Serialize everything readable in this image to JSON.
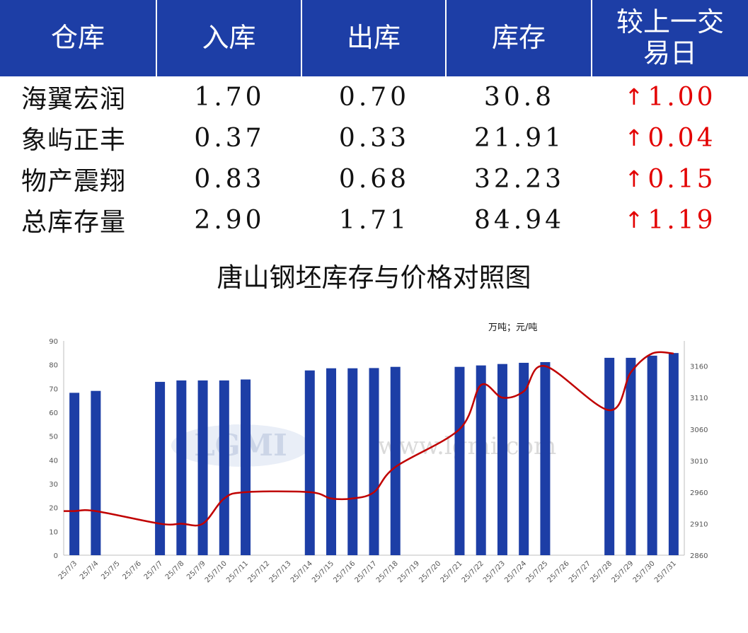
{
  "table": {
    "headers": [
      "仓库",
      "入库",
      "出库",
      "库存",
      "较上一交易日"
    ],
    "rows": [
      {
        "name": "海翼宏润",
        "in": "1.70",
        "out": "0.70",
        "stock": "30.8",
        "change": "1.00"
      },
      {
        "name": "象屿正丰",
        "in": "0.37",
        "out": "0.33",
        "stock": "21.91",
        "change": "0.04"
      },
      {
        "name": "物产震翔",
        "in": "0.83",
        "out": "0.68",
        "stock": "32.23",
        "change": "0.15"
      },
      {
        "name": "总库存量",
        "in": "2.90",
        "out": "1.71",
        "stock": "84.94",
        "change": "1.19"
      }
    ],
    "change_arrow": "↑",
    "change_color": "#e30000",
    "header_color": "#1d3ea6"
  },
  "watermark": {
    "logo": "LGMI",
    "url": "www.lgmi.com"
  },
  "chart_data": {
    "type": "bar+line",
    "title": "唐山钢坯库存与价格对照图",
    "unit_label": "万吨；元/吨",
    "categories": [
      "25/7/3",
      "25/7/4",
      "25/7/5",
      "25/7/6",
      "25/7/7",
      "25/7/8",
      "25/7/9",
      "25/7/10",
      "25/7/11",
      "25/7/12",
      "25/7/13",
      "25/7/14",
      "25/7/15",
      "25/7/16",
      "25/7/17",
      "25/7/18",
      "25/7/19",
      "25/7/20",
      "25/7/21",
      "25/7/22",
      "25/7/23",
      "25/7/24",
      "25/7/25",
      "25/7/26",
      "25/7/27",
      "25/7/28",
      "25/7/29",
      "25/7/30",
      "25/7/31"
    ],
    "series": [
      {
        "type": "bar",
        "axis": "left",
        "color": "#1d3ea6",
        "values": [
          68.2,
          69.0,
          null,
          null,
          72.8,
          73.4,
          73.4,
          73.4,
          73.8,
          null,
          null,
          77.6,
          78.5,
          78.5,
          78.6,
          79.1,
          null,
          null,
          79.1,
          79.7,
          80.3,
          80.8,
          81.1,
          null,
          null,
          82.9,
          82.9,
          83.8,
          84.9
        ]
      },
      {
        "type": "line",
        "axis": "right",
        "color": "#c00000",
        "values": [
          2930,
          2930,
          null,
          null,
          2910,
          2910,
          2910,
          2950,
          2960,
          null,
          null,
          2960,
          2950,
          2950,
          2960,
          3000,
          null,
          null,
          3060,
          3130,
          3110,
          3120,
          3160,
          null,
          null,
          3090,
          3150,
          3180,
          3180
        ]
      }
    ],
    "y_left": {
      "min": 0,
      "max": 90,
      "ticks": [
        0,
        10,
        20,
        30,
        40,
        50,
        60,
        70,
        80,
        90
      ]
    },
    "y_right": {
      "min": 2860,
      "max": 3200,
      "ticks": [
        2860,
        2910,
        2960,
        3010,
        3060,
        3110,
        3160
      ]
    },
    "grid": false,
    "legend": "none"
  }
}
